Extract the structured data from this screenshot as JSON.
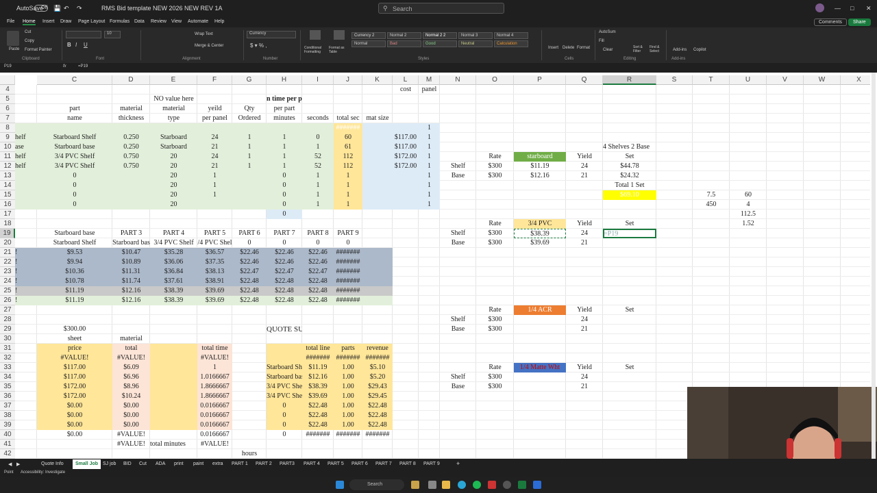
{
  "titlebar": {
    "autosave": "AutoSave",
    "autosave_state": "Off",
    "filename": "RMS Bid template NEW 2026  NEW REV 1A",
    "search_placeholder": "Search"
  },
  "menu": [
    "File",
    "Home",
    "Insert",
    "Draw",
    "Page Layout",
    "Formulas",
    "Data",
    "Review",
    "View",
    "Automate",
    "Help"
  ],
  "menu_right": {
    "comments": "Comments",
    "share": "Share"
  },
  "ribbon": {
    "clipboard": {
      "label": "Clipboard",
      "cut": "Cut",
      "copy": "Copy",
      "format_painter": "Format Painter",
      "paste": "Paste"
    },
    "font": {
      "label": "Font",
      "size": "10"
    },
    "alignment": {
      "label": "Alignment",
      "wrap": "Wrap Text",
      "merge": "Merge & Center"
    },
    "number": {
      "label": "Number",
      "format": "Currency"
    },
    "styles": {
      "label": "Styles",
      "cond": "Conditional Formatting",
      "table": "Format as Table",
      "cells": [
        [
          "Currency 2",
          "Normal 2",
          "Normal 2 2",
          "Normal 3",
          "Normal 4"
        ],
        [
          "Normal",
          "Bad",
          "Good",
          "Neutral",
          "Calculation"
        ]
      ]
    },
    "cells": {
      "label": "Cells",
      "insert": "Insert",
      "delete": "Delete",
      "format": "Format"
    },
    "editing": {
      "label": "Editing",
      "autosum": "AutoSum",
      "fill": "Fill",
      "clear": "Clear",
      "sort": "Sort & Filter",
      "find": "Find & Select"
    },
    "addins": {
      "label": "Add-ins",
      "addins": "Add-ins",
      "copilot": "Copilot"
    }
  },
  "formula_bar": {
    "name_box": "P19",
    "formula": "=P19"
  },
  "sheet": {
    "columns": [
      "C",
      "D",
      "E",
      "F",
      "G",
      "H",
      "I",
      "J",
      "K",
      "L",
      "M",
      "N",
      "O",
      "P",
      "Q",
      "R",
      "S",
      "T",
      "U",
      "V",
      "W",
      "X"
    ],
    "rows": [
      "4",
      "5",
      "6",
      "7",
      "8",
      "9",
      "10",
      "11",
      "12",
      "13",
      "14",
      "15",
      "16",
      "17",
      "18",
      "19",
      "20",
      "21",
      "22",
      "23",
      "24",
      "25",
      "26",
      "27",
      "28",
      "29",
      "30",
      "31",
      "32",
      "33",
      "34",
      "35",
      "36",
      "37",
      "38",
      "39",
      "40",
      "41",
      "42"
    ],
    "cells": [
      [
        "L4",
        "cost"
      ],
      [
        "M4",
        "panel"
      ],
      [
        "E5",
        "NO value here"
      ],
      [
        "H5",
        "n time per p"
      ],
      [
        "C6",
        "part"
      ],
      [
        "D6",
        "material"
      ],
      [
        "E6",
        "material"
      ],
      [
        "F6",
        "yeild"
      ],
      [
        "G6",
        "Qty"
      ],
      [
        "H6",
        "per part"
      ],
      [
        "C7",
        "name"
      ],
      [
        "D7",
        "thickness"
      ],
      [
        "E7",
        "type"
      ],
      [
        "F7",
        "per panel"
      ],
      [
        "G7",
        "Ordered"
      ],
      [
        "H7",
        "minutes"
      ],
      [
        "I7",
        "seconds"
      ],
      [
        "J7",
        "total sec"
      ],
      [
        "K7",
        "mat size"
      ],
      [
        "J8",
        "#######"
      ],
      [
        "M8",
        "1"
      ],
      [
        "B9",
        "helf"
      ],
      [
        "C9",
        "Starboard Shelf"
      ],
      [
        "D9",
        "0.250"
      ],
      [
        "E9",
        "Starboard"
      ],
      [
        "F9",
        "24"
      ],
      [
        "G9",
        "1"
      ],
      [
        "H9",
        "1"
      ],
      [
        "I9",
        "0"
      ],
      [
        "J9",
        "60"
      ],
      [
        "L9",
        "$117.00"
      ],
      [
        "M9",
        "1"
      ],
      [
        "R10",
        "4 Shelves 2 Base"
      ],
      [
        "B10",
        "ase"
      ],
      [
        "C10",
        "Starboard base"
      ],
      [
        "D10",
        "0.250"
      ],
      [
        "E10",
        "Starboard"
      ],
      [
        "F10",
        "21"
      ],
      [
        "G10",
        "1"
      ],
      [
        "H10",
        "1"
      ],
      [
        "I10",
        "1"
      ],
      [
        "J10",
        "61"
      ],
      [
        "L10",
        "$117.00"
      ],
      [
        "M10",
        "1"
      ],
      [
        "B11",
        "helf"
      ],
      [
        "C11",
        "3/4 PVC Shelf"
      ],
      [
        "D11",
        "0.750"
      ],
      [
        "E11",
        "20"
      ],
      [
        "F11",
        "24"
      ],
      [
        "G11",
        "1"
      ],
      [
        "H11",
        "1"
      ],
      [
        "I11",
        "52"
      ],
      [
        "J11",
        "112"
      ],
      [
        "L11",
        "$172.00"
      ],
      [
        "M11",
        "1"
      ],
      [
        "O11",
        "Rate"
      ],
      [
        "P11",
        "starboard"
      ],
      [
        "Q11",
        "Yield"
      ],
      [
        "R11",
        "Set"
      ],
      [
        "B12",
        "helf"
      ],
      [
        "C12",
        "3/4 PVC Shelf"
      ],
      [
        "D12",
        "0.750"
      ],
      [
        "E12",
        "20"
      ],
      [
        "F12",
        "21"
      ],
      [
        "G12",
        "1"
      ],
      [
        "H12",
        "1"
      ],
      [
        "I12",
        "52"
      ],
      [
        "J12",
        "112"
      ],
      [
        "L12",
        "$172.00"
      ],
      [
        "M12",
        "1"
      ],
      [
        "N12",
        "Shelf"
      ],
      [
        "O12",
        "$300"
      ],
      [
        "P12",
        "$11.19"
      ],
      [
        "Q12",
        "24"
      ],
      [
        "R12",
        "$44.78"
      ],
      [
        "C13",
        "0"
      ],
      [
        "E13",
        "20"
      ],
      [
        "F13",
        "1"
      ],
      [
        "H13",
        "0"
      ],
      [
        "I13",
        "1"
      ],
      [
        "J13",
        "1"
      ],
      [
        "M13",
        "1"
      ],
      [
        "N13",
        "Base"
      ],
      [
        "O13",
        "$300"
      ],
      [
        "P13",
        "$12.16"
      ],
      [
        "Q13",
        "21"
      ],
      [
        "R13",
        "$24.32"
      ],
      [
        "C14",
        "0"
      ],
      [
        "E14",
        "20"
      ],
      [
        "F14",
        "1"
      ],
      [
        "H14",
        "0"
      ],
      [
        "I14",
        "1"
      ],
      [
        "J14",
        "1"
      ],
      [
        "M14",
        "1"
      ],
      [
        "R14",
        "Total 1 Set"
      ],
      [
        "C15",
        "0"
      ],
      [
        "E15",
        "20"
      ],
      [
        "F15",
        "1"
      ],
      [
        "H15",
        "0"
      ],
      [
        "I15",
        "1"
      ],
      [
        "J15",
        "1"
      ],
      [
        "M15",
        "1"
      ],
      [
        "R15",
        "$69.10"
      ],
      [
        "T15",
        "7.5"
      ],
      [
        "U15",
        "60"
      ],
      [
        "C16",
        "0"
      ],
      [
        "E16",
        "20"
      ],
      [
        "H16",
        "0"
      ],
      [
        "I16",
        "1"
      ],
      [
        "J16",
        "1"
      ],
      [
        "M16",
        "1"
      ],
      [
        "T16",
        "450"
      ],
      [
        "U16",
        "4"
      ],
      [
        "H17",
        "0"
      ],
      [
        "U17",
        "112.5"
      ],
      [
        "O18",
        "Rate"
      ],
      [
        "P18",
        "3/4 PVC"
      ],
      [
        "Q18",
        "Yield"
      ],
      [
        "R18",
        "Set"
      ],
      [
        "U18",
        "1.52"
      ],
      [
        "C19",
        "Starboard base"
      ],
      [
        "D19",
        "PART 3"
      ],
      [
        "E19",
        "PART 4"
      ],
      [
        "F19",
        "PART 5"
      ],
      [
        "G19",
        "PART 6"
      ],
      [
        "H19",
        "PART 7"
      ],
      [
        "I19",
        "PART 8"
      ],
      [
        "J19",
        "PART 9"
      ],
      [
        "N19",
        "Shelf"
      ],
      [
        "O19",
        "$300"
      ],
      [
        "P19",
        "$38.39"
      ],
      [
        "Q19",
        "24"
      ],
      [
        "R19",
        "=P19"
      ],
      [
        "C20",
        "Starboard Shelf"
      ],
      [
        "D20",
        "Starboard bas"
      ],
      [
        "E20",
        "3/4 PVC Shelf"
      ],
      [
        "F20",
        "/4 PVC Shel"
      ],
      [
        "G20",
        "0"
      ],
      [
        "H20",
        "0"
      ],
      [
        "I20",
        "0"
      ],
      [
        "J20",
        "0"
      ],
      [
        "N20",
        "Base"
      ],
      [
        "O20",
        "$300"
      ],
      [
        "P20",
        "$39.69"
      ],
      [
        "Q20",
        "21"
      ],
      [
        "B21",
        "!"
      ],
      [
        "C21",
        "$9.53"
      ],
      [
        "D21",
        "$10.47"
      ],
      [
        "E21",
        "$35.28"
      ],
      [
        "F21",
        "$36.57"
      ],
      [
        "G21",
        "$22.46"
      ],
      [
        "H21",
        "$22.46"
      ],
      [
        "I21",
        "$22.46"
      ],
      [
        "J21",
        "#######"
      ],
      [
        "B22",
        "!"
      ],
      [
        "C22",
        "$9.94"
      ],
      [
        "D22",
        "$10.89"
      ],
      [
        "E22",
        "$36.06"
      ],
      [
        "F22",
        "$37.35"
      ],
      [
        "G22",
        "$22.46"
      ],
      [
        "H22",
        "$22.46"
      ],
      [
        "I22",
        "$22.46"
      ],
      [
        "J22",
        "#######"
      ],
      [
        "B23",
        "!"
      ],
      [
        "C23",
        "$10.36"
      ],
      [
        "D23",
        "$11.31"
      ],
      [
        "E23",
        "$36.84"
      ],
      [
        "F23",
        "$38.13"
      ],
      [
        "G23",
        "$22.47"
      ],
      [
        "H23",
        "$22.47"
      ],
      [
        "I23",
        "$22.47"
      ],
      [
        "J23",
        "#######"
      ],
      [
        "B24",
        "!"
      ],
      [
        "C24",
        "$10.78"
      ],
      [
        "D24",
        "$11.74"
      ],
      [
        "E24",
        "$37.61"
      ],
      [
        "F24",
        "$38.91"
      ],
      [
        "G24",
        "$22.48"
      ],
      [
        "H24",
        "$22.48"
      ],
      [
        "I24",
        "$22.48"
      ],
      [
        "J24",
        "#######"
      ],
      [
        "B25",
        "!"
      ],
      [
        "C25",
        "$11.19"
      ],
      [
        "D25",
        "$12.16"
      ],
      [
        "E25",
        "$38.39"
      ],
      [
        "F25",
        "$39.69"
      ],
      [
        "G25",
        "$22.48"
      ],
      [
        "H25",
        "$22.48"
      ],
      [
        "I25",
        "$22.48"
      ],
      [
        "J25",
        "#######"
      ],
      [
        "B26",
        "!"
      ],
      [
        "C26",
        "$11.19"
      ],
      [
        "D26",
        "$12.16"
      ],
      [
        "E26",
        "$38.39"
      ],
      [
        "F26",
        "$39.69"
      ],
      [
        "G26",
        "$22.48"
      ],
      [
        "H26",
        "$22.48"
      ],
      [
        "I26",
        "$22.48"
      ],
      [
        "J26",
        "#######"
      ],
      [
        "O27",
        "Rate"
      ],
      [
        "P27",
        "1/4 ACR"
      ],
      [
        "Q27",
        "Yield"
      ],
      [
        "R27",
        "Set"
      ],
      [
        "N28",
        "Shelf"
      ],
      [
        "O28",
        "$300"
      ],
      [
        "Q28",
        "24"
      ],
      [
        "C29",
        "$300.00"
      ],
      [
        "H29",
        "QUOTE SUMMARY"
      ],
      [
        "N29",
        "Base"
      ],
      [
        "O29",
        "$300"
      ],
      [
        "Q29",
        "21"
      ],
      [
        "C30",
        "sheet"
      ],
      [
        "D30",
        "material"
      ],
      [
        "C31",
        "price"
      ],
      [
        "D31",
        "total"
      ],
      [
        "F31",
        "total time"
      ],
      [
        "I31",
        "total line"
      ],
      [
        "J31",
        "parts"
      ],
      [
        "K31",
        "revenue"
      ],
      [
        "C32",
        "#VALUE!"
      ],
      [
        "D32",
        "#VALUE!"
      ],
      [
        "F32",
        "#VALUE!"
      ],
      [
        "I32",
        "#######"
      ],
      [
        "J32",
        "#######"
      ],
      [
        "K32",
        "#######"
      ],
      [
        "C33",
        "$117.00"
      ],
      [
        "D33",
        "$6.09"
      ],
      [
        "F33",
        "1"
      ],
      [
        "H33",
        "Starboard She"
      ],
      [
        "I33",
        "$11.19"
      ],
      [
        "J33",
        "1.00"
      ],
      [
        "K33",
        "$5.10"
      ],
      [
        "O33",
        "Rate"
      ],
      [
        "P33",
        "1/4 Matte Wht"
      ],
      [
        "Q33",
        "Yield"
      ],
      [
        "R33",
        "Set"
      ],
      [
        "C34",
        "$117.00"
      ],
      [
        "D34",
        "$6.96"
      ],
      [
        "F34",
        "1.0166667"
      ],
      [
        "H34",
        "Starboard bas"
      ],
      [
        "I34",
        "$12.16"
      ],
      [
        "J34",
        "1.00"
      ],
      [
        "K34",
        "$5.20"
      ],
      [
        "N34",
        "Shelf"
      ],
      [
        "O34",
        "$300"
      ],
      [
        "Q34",
        "24"
      ],
      [
        "C35",
        "$172.00"
      ],
      [
        "D35",
        "$8.96"
      ],
      [
        "F35",
        "1.8666667"
      ],
      [
        "H35",
        "3/4 PVC Shel"
      ],
      [
        "I35",
        "$38.39"
      ],
      [
        "J35",
        "1.00"
      ],
      [
        "K35",
        "$29.43"
      ],
      [
        "N35",
        "Base"
      ],
      [
        "O35",
        "$300"
      ],
      [
        "Q35",
        "21"
      ],
      [
        "C36",
        "$172.00"
      ],
      [
        "D36",
        "$10.24"
      ],
      [
        "F36",
        "1.8666667"
      ],
      [
        "H36",
        "3/4 PVC Shel"
      ],
      [
        "I36",
        "$39.69"
      ],
      [
        "J36",
        "1.00"
      ],
      [
        "K36",
        "$29.45"
      ],
      [
        "C37",
        "$0.00"
      ],
      [
        "D37",
        "$0.00"
      ],
      [
        "F37",
        "0.0166667"
      ],
      [
        "H37",
        "0"
      ],
      [
        "I37",
        "$22.48"
      ],
      [
        "J37",
        "1.00"
      ],
      [
        "K37",
        "$22.48"
      ],
      [
        "C38",
        "$0.00"
      ],
      [
        "D38",
        "$0.00"
      ],
      [
        "F38",
        "0.0166667"
      ],
      [
        "H38",
        "0"
      ],
      [
        "I38",
        "$22.48"
      ],
      [
        "J38",
        "1.00"
      ],
      [
        "K38",
        "$22.48"
      ],
      [
        "C39",
        "$0.00"
      ],
      [
        "D39",
        "$0.00"
      ],
      [
        "F39",
        "0.0166667"
      ],
      [
        "H39",
        "0"
      ],
      [
        "I39",
        "$22.48"
      ],
      [
        "J39",
        "1.00"
      ],
      [
        "K39",
        "$22.48"
      ],
      [
        "C40",
        "$0.00"
      ],
      [
        "D40",
        "#VALUE!"
      ],
      [
        "F40",
        "0.0166667"
      ],
      [
        "H40",
        "0"
      ],
      [
        "I40",
        "#######"
      ],
      [
        "J40",
        "#######"
      ],
      [
        "K40",
        "#######"
      ],
      [
        "D41",
        "#VALUE!"
      ],
      [
        "E41",
        "total minutes"
      ],
      [
        "F41",
        "#VALUE!"
      ],
      [
        "G42",
        "hours"
      ],
      [
        "G43",
        "#VALUE!"
      ],
      [
        "J43",
        "#######"
      ]
    ]
  },
  "sheet_tabs": [
    "Quote Info",
    "Small Job",
    "SJ job",
    "BID",
    "Cut",
    "ADA",
    "print",
    "paint",
    "extra",
    "PART 1",
    "PART 2",
    "PART3",
    "PART 4",
    "PART 5",
    "PART 6",
    "PART 7",
    "PART 8",
    "PART 9"
  ],
  "active_tab": "Small Job",
  "status": {
    "ready": "Point",
    "accessibility": "Accessibility: Investigate"
  },
  "taskbar": {
    "search": "Search"
  },
  "colors": {
    "green_fill": "#e2efda",
    "yellow_fill": "#ffe699",
    "blue_fill": "#ddebf7",
    "gray_blue": "#acb9ca",
    "salmon": "#fce4d6",
    "green_label": "#70ad47",
    "yellow_hi": "#ffff00",
    "orange": "#ed7d31",
    "blue_label": "#4472c4",
    "excel_green": "#1a7a3e"
  }
}
